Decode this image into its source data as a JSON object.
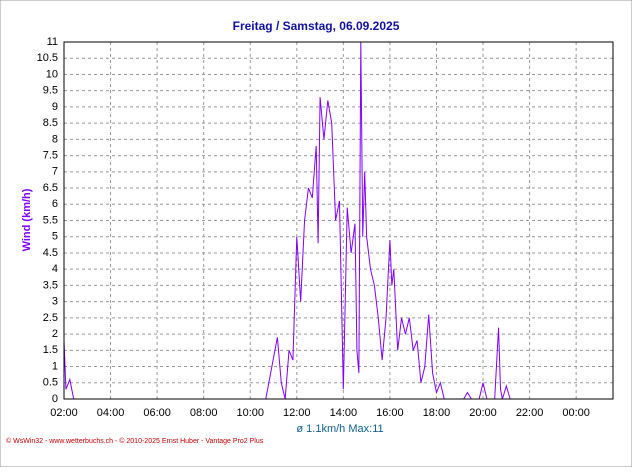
{
  "chart_data": {
    "type": "line",
    "title": "Freitag / Samstag, 06.09.2025",
    "y_label": "Wind (km/h)",
    "summary": "ø 1.1km/h  Max:11",
    "credit": "© WsWin32 - www.wetterbuchs.ch - © 2010-2025 Ernst Huber - Vantage Pro2 Plus",
    "x": [
      "02:00",
      "02:05",
      "02:15",
      "02:25",
      "10:40",
      "11:10",
      "11:20",
      "11:30",
      "11:40",
      "11:50",
      "12:00",
      "12:10",
      "12:20",
      "12:30",
      "12:40",
      "12:50",
      "12:55",
      "13:00",
      "13:10",
      "13:20",
      "13:30",
      "13:40",
      "13:50",
      "14:00",
      "14:10",
      "14:20",
      "14:30",
      "14:35",
      "14:40",
      "14:45",
      "14:50",
      "14:55",
      "15:00",
      "15:10",
      "15:20",
      "15:30",
      "15:40",
      "15:50",
      "16:00",
      "16:05",
      "16:10",
      "16:20",
      "16:30",
      "16:40",
      "16:50",
      "17:00",
      "17:10",
      "17:20",
      "17:30",
      "17:40",
      "17:50",
      "18:00",
      "18:10",
      "18:20",
      "19:10",
      "19:20",
      "19:30",
      "19:50",
      "20:00",
      "20:10",
      "20:30",
      "20:40",
      "20:45",
      "20:50",
      "21:00",
      "21:10",
      "01:35"
    ],
    "series": [
      {
        "name": "Wind",
        "color": "#8000ff",
        "values": [
          1.8,
          0.3,
          0.6,
          0,
          0,
          1.9,
          0.5,
          0,
          1.5,
          1.2,
          5.0,
          3.0,
          5.5,
          6.5,
          6.2,
          7.8,
          4.8,
          9.3,
          8.0,
          9.2,
          8.5,
          5.5,
          6.1,
          0.3,
          5.9,
          4.5,
          5.4,
          1.5,
          0.8,
          11,
          5.0,
          7.0,
          5.0,
          4.0,
          3.5,
          2.5,
          1.2,
          2.5,
          4.9,
          3.5,
          4.0,
          1.5,
          2.5,
          2.0,
          2.5,
          1.5,
          1.8,
          0.5,
          1.0,
          2.6,
          0.8,
          0.2,
          0.5,
          0,
          0,
          0.2,
          0,
          0,
          0.5,
          0,
          0,
          2.2,
          0.3,
          0,
          0.4,
          0,
          0
        ]
      }
    ],
    "xlim": [
      "02:00",
      "01:35"
    ],
    "xticks": [
      "02:00",
      "04:00",
      "06:00",
      "08:00",
      "10:00",
      "12:00",
      "14:00",
      "16:00",
      "18:00",
      "20:00",
      "22:00",
      "00:00"
    ],
    "ylim": [
      0,
      11
    ],
    "yticks": [
      0,
      0.5,
      1,
      1.5,
      2,
      2.5,
      3,
      3.5,
      4,
      4.5,
      5,
      5.5,
      6,
      6.5,
      7,
      7.5,
      8,
      8.5,
      9,
      9.5,
      10,
      10.5,
      11
    ],
    "grid": true
  }
}
